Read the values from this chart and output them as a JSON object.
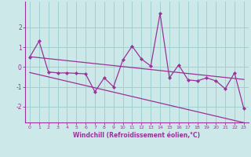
{
  "xlabel": "Windchill (Refroidissement éolien,°C)",
  "x_values": [
    0,
    1,
    2,
    3,
    4,
    5,
    6,
    7,
    8,
    9,
    10,
    11,
    12,
    13,
    14,
    15,
    16,
    17,
    18,
    19,
    20,
    21,
    22,
    23
  ],
  "y_zigzag": [
    0.5,
    1.3,
    -0.25,
    -0.3,
    -0.3,
    -0.32,
    -0.35,
    -1.25,
    -0.55,
    -1.0,
    0.35,
    1.05,
    0.4,
    0.05,
    2.7,
    -0.55,
    0.1,
    -0.65,
    -0.7,
    -0.55,
    -0.7,
    -1.1,
    -0.3,
    -2.1
  ],
  "trend_upper": [
    0.52,
    0.47,
    0.42,
    0.37,
    0.32,
    0.27,
    0.22,
    0.17,
    0.12,
    0.07,
    0.02,
    -0.03,
    -0.08,
    -0.13,
    -0.18,
    -0.23,
    -0.28,
    -0.33,
    -0.38,
    -0.43,
    -0.48,
    -0.53,
    -0.58,
    -0.63
  ],
  "trend_lower": [
    -0.28,
    -0.39,
    -0.5,
    -0.61,
    -0.72,
    -0.83,
    -0.94,
    -1.05,
    -1.16,
    -1.27,
    -1.38,
    -1.49,
    -1.6,
    -1.71,
    -1.82,
    -1.93,
    -2.04,
    -2.15,
    -2.26,
    -2.37,
    -2.48,
    -2.59,
    -2.7,
    -2.81
  ],
  "bg_color": "#cce8e8",
  "line_color": "#993399",
  "grid_color": "#99cccc",
  "tick_color": "#993399",
  "ylim": [
    -2.8,
    3.3
  ],
  "yticks": [
    -2,
    -1,
    0,
    1,
    2
  ],
  "xlim": [
    -0.5,
    23.5
  ],
  "figsize": [
    3.2,
    2.0
  ],
  "dpi": 100
}
